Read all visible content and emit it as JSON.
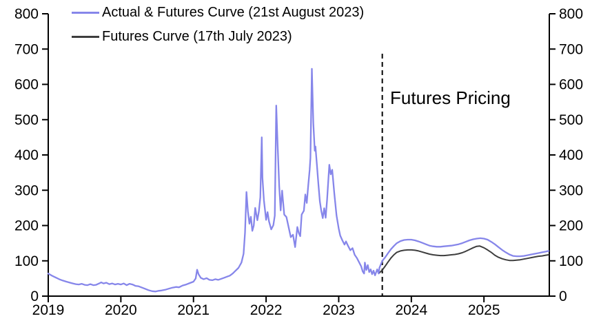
{
  "page": {
    "background": "#ffffff"
  },
  "legend": {
    "items": [
      {
        "label": "Actual & Futures Curve (21st August 2023)",
        "color": "#8686ea"
      },
      {
        "label": "Futures Curve (17th July 2023)",
        "color": "#3d3d3d"
      }
    ]
  },
  "annotation": {
    "text": "Futures Pricing"
  },
  "chart_data": {
    "type": "line",
    "title": "",
    "xlabel": "",
    "ylabel": "",
    "grid": false,
    "legend_position": "top-left",
    "x_axis": {
      "min": 2019,
      "max": 2025.9,
      "ticks": [
        2019,
        2020,
        2021,
        2022,
        2023,
        2024,
        2025
      ],
      "tick_labels": [
        "2019",
        "2020",
        "2021",
        "2022",
        "2023",
        "2024",
        "2025"
      ]
    },
    "y_axis": {
      "min": 0,
      "max": 800,
      "ticks": [
        0,
        100,
        200,
        300,
        400,
        500,
        600,
        700,
        800
      ],
      "label_sides": "both"
    },
    "forecast_divider": {
      "x": 2023.6,
      "style": "dashed",
      "color": "#000000",
      "label": "Futures Pricing"
    },
    "series": [
      {
        "name": "Actual & Futures Curve (21st August 2023)",
        "color": "#8686ea",
        "width": 2.3,
        "points": [
          [
            2019.0,
            64
          ],
          [
            2019.05,
            58
          ],
          [
            2019.1,
            53
          ],
          [
            2019.15,
            48
          ],
          [
            2019.2,
            44
          ],
          [
            2019.25,
            41
          ],
          [
            2019.3,
            38
          ],
          [
            2019.34,
            36
          ],
          [
            2019.38,
            34
          ],
          [
            2019.42,
            33
          ],
          [
            2019.46,
            35
          ],
          [
            2019.5,
            32
          ],
          [
            2019.54,
            31
          ],
          [
            2019.58,
            34
          ],
          [
            2019.62,
            31
          ],
          [
            2019.66,
            32
          ],
          [
            2019.7,
            36
          ],
          [
            2019.73,
            39
          ],
          [
            2019.76,
            36
          ],
          [
            2019.8,
            38
          ],
          [
            2019.84,
            34
          ],
          [
            2019.88,
            36
          ],
          [
            2019.92,
            33
          ],
          [
            2019.96,
            35
          ],
          [
            2020.0,
            33
          ],
          [
            2020.04,
            36
          ],
          [
            2020.08,
            31
          ],
          [
            2020.12,
            35
          ],
          [
            2020.16,
            33
          ],
          [
            2020.2,
            29
          ],
          [
            2020.24,
            28
          ],
          [
            2020.28,
            25
          ],
          [
            2020.33,
            21
          ],
          [
            2020.38,
            17
          ],
          [
            2020.43,
            14
          ],
          [
            2020.48,
            13
          ],
          [
            2020.52,
            15
          ],
          [
            2020.56,
            16
          ],
          [
            2020.61,
            18
          ],
          [
            2020.66,
            21
          ],
          [
            2020.71,
            24
          ],
          [
            2020.76,
            26
          ],
          [
            2020.8,
            25
          ],
          [
            2020.85,
            30
          ],
          [
            2020.9,
            33
          ],
          [
            2020.95,
            37
          ],
          [
            2021.0,
            41
          ],
          [
            2021.03,
            50
          ],
          [
            2021.05,
            75
          ],
          [
            2021.07,
            62
          ],
          [
            2021.1,
            52
          ],
          [
            2021.14,
            48
          ],
          [
            2021.18,
            51
          ],
          [
            2021.22,
            46
          ],
          [
            2021.26,
            45
          ],
          [
            2021.3,
            48
          ],
          [
            2021.34,
            46
          ],
          [
            2021.38,
            49
          ],
          [
            2021.42,
            52
          ],
          [
            2021.46,
            55
          ],
          [
            2021.5,
            58
          ],
          [
            2021.54,
            64
          ],
          [
            2021.58,
            72
          ],
          [
            2021.62,
            80
          ],
          [
            2021.66,
            95
          ],
          [
            2021.69,
            120
          ],
          [
            2021.71,
            180
          ],
          [
            2021.73,
            295
          ],
          [
            2021.75,
            240
          ],
          [
            2021.77,
            205
          ],
          [
            2021.79,
            225
          ],
          [
            2021.81,
            185
          ],
          [
            2021.83,
            200
          ],
          [
            2021.85,
            250
          ],
          [
            2021.88,
            215
          ],
          [
            2021.9,
            240
          ],
          [
            2021.92,
            280
          ],
          [
            2021.94,
            450
          ],
          [
            2021.95,
            335
          ],
          [
            2021.97,
            272
          ],
          [
            2022.0,
            216
          ],
          [
            2022.02,
            238
          ],
          [
            2022.04,
            212
          ],
          [
            2022.07,
            189
          ],
          [
            2022.1,
            201
          ],
          [
            2022.12,
            228
          ],
          [
            2022.14,
            540
          ],
          [
            2022.16,
            424
          ],
          [
            2022.18,
            312
          ],
          [
            2022.2,
            243
          ],
          [
            2022.22,
            299
          ],
          [
            2022.25,
            231
          ],
          [
            2022.28,
            224
          ],
          [
            2022.31,
            196
          ],
          [
            2022.34,
            167
          ],
          [
            2022.37,
            174
          ],
          [
            2022.4,
            139
          ],
          [
            2022.43,
            196
          ],
          [
            2022.45,
            179
          ],
          [
            2022.47,
            170
          ],
          [
            2022.49,
            231
          ],
          [
            2022.52,
            242
          ],
          [
            2022.54,
            288
          ],
          [
            2022.56,
            264
          ],
          [
            2022.58,
            313
          ],
          [
            2022.6,
            358
          ],
          [
            2022.61,
            392
          ],
          [
            2022.63,
            644
          ],
          [
            2022.65,
            490
          ],
          [
            2022.67,
            412
          ],
          [
            2022.68,
            424
          ],
          [
            2022.7,
            372
          ],
          [
            2022.72,
            319
          ],
          [
            2022.74,
            268
          ],
          [
            2022.76,
            241
          ],
          [
            2022.78,
            221
          ],
          [
            2022.8,
            249
          ],
          [
            2022.82,
            222
          ],
          [
            2022.84,
            274
          ],
          [
            2022.87,
            372
          ],
          [
            2022.89,
            345
          ],
          [
            2022.91,
            358
          ],
          [
            2022.94,
            290
          ],
          [
            2022.97,
            228
          ],
          [
            2023.0,
            192
          ],
          [
            2023.02,
            172
          ],
          [
            2023.05,
            158
          ],
          [
            2023.08,
            146
          ],
          [
            2023.1,
            155
          ],
          [
            2023.13,
            142
          ],
          [
            2023.16,
            130
          ],
          [
            2023.19,
            136
          ],
          [
            2023.22,
            117
          ],
          [
            2023.25,
            108
          ],
          [
            2023.28,
            96
          ],
          [
            2023.31,
            84
          ],
          [
            2023.33,
            70
          ],
          [
            2023.35,
            64
          ],
          [
            2023.36,
            95
          ],
          [
            2023.38,
            74
          ],
          [
            2023.4,
            88
          ],
          [
            2023.42,
            68
          ],
          [
            2023.44,
            76
          ],
          [
            2023.46,
            62
          ],
          [
            2023.48,
            72
          ],
          [
            2023.5,
            59
          ],
          [
            2023.52,
            70
          ],
          [
            2023.53,
            76
          ],
          [
            2023.55,
            64
          ],
          [
            2023.56,
            80
          ],
          [
            2023.58,
            90
          ],
          [
            2023.6,
            100
          ],
          [
            2023.64,
            110
          ],
          [
            2023.68,
            122
          ],
          [
            2023.72,
            133
          ],
          [
            2023.76,
            142
          ],
          [
            2023.8,
            150
          ],
          [
            2023.85,
            156
          ],
          [
            2023.9,
            159
          ],
          [
            2023.95,
            160
          ],
          [
            2024.0,
            160
          ],
          [
            2024.05,
            158
          ],
          [
            2024.1,
            155
          ],
          [
            2024.15,
            151
          ],
          [
            2024.2,
            147
          ],
          [
            2024.25,
            143
          ],
          [
            2024.3,
            141
          ],
          [
            2024.35,
            140
          ],
          [
            2024.4,
            140
          ],
          [
            2024.45,
            141
          ],
          [
            2024.5,
            142
          ],
          [
            2024.55,
            143
          ],
          [
            2024.6,
            145
          ],
          [
            2024.65,
            147
          ],
          [
            2024.7,
            150
          ],
          [
            2024.75,
            154
          ],
          [
            2024.8,
            158
          ],
          [
            2024.85,
            161
          ],
          [
            2024.9,
            163
          ],
          [
            2024.95,
            164
          ],
          [
            2025.0,
            163
          ],
          [
            2025.05,
            160
          ],
          [
            2025.1,
            154
          ],
          [
            2025.15,
            147
          ],
          [
            2025.2,
            139
          ],
          [
            2025.25,
            131
          ],
          [
            2025.3,
            124
          ],
          [
            2025.35,
            118
          ],
          [
            2025.4,
            114
          ],
          [
            2025.45,
            113
          ],
          [
            2025.5,
            113
          ],
          [
            2025.55,
            114
          ],
          [
            2025.6,
            116
          ],
          [
            2025.65,
            118
          ],
          [
            2025.7,
            120
          ],
          [
            2025.75,
            122
          ],
          [
            2025.8,
            124
          ],
          [
            2025.85,
            126
          ],
          [
            2025.89,
            128
          ]
        ]
      },
      {
        "name": "Futures Curve (17th July 2023)",
        "color": "#3d3d3d",
        "width": 2,
        "points": [
          [
            2023.56,
            66
          ],
          [
            2023.6,
            74
          ],
          [
            2023.64,
            85
          ],
          [
            2023.68,
            97
          ],
          [
            2023.72,
            108
          ],
          [
            2023.76,
            117
          ],
          [
            2023.8,
            124
          ],
          [
            2023.85,
            128
          ],
          [
            2023.9,
            130
          ],
          [
            2023.95,
            131
          ],
          [
            2024.0,
            131
          ],
          [
            2024.05,
            130
          ],
          [
            2024.1,
            128
          ],
          [
            2024.15,
            125
          ],
          [
            2024.2,
            122
          ],
          [
            2024.25,
            119
          ],
          [
            2024.3,
            117
          ],
          [
            2024.35,
            116
          ],
          [
            2024.4,
            115
          ],
          [
            2024.45,
            115
          ],
          [
            2024.5,
            116
          ],
          [
            2024.55,
            117
          ],
          [
            2024.6,
            118
          ],
          [
            2024.65,
            120
          ],
          [
            2024.7,
            123
          ],
          [
            2024.75,
            127
          ],
          [
            2024.8,
            132
          ],
          [
            2024.85,
            137
          ],
          [
            2024.9,
            141
          ],
          [
            2024.94,
            142
          ],
          [
            2025.0,
            137
          ],
          [
            2025.05,
            131
          ],
          [
            2025.1,
            124
          ],
          [
            2025.15,
            116
          ],
          [
            2025.2,
            110
          ],
          [
            2025.25,
            106
          ],
          [
            2025.3,
            103
          ],
          [
            2025.35,
            101
          ],
          [
            2025.4,
            101
          ],
          [
            2025.45,
            102
          ],
          [
            2025.5,
            103
          ],
          [
            2025.55,
            105
          ],
          [
            2025.6,
            107
          ],
          [
            2025.65,
            109
          ],
          [
            2025.7,
            111
          ],
          [
            2025.75,
            113
          ],
          [
            2025.8,
            114
          ],
          [
            2025.85,
            116
          ],
          [
            2025.89,
            117
          ]
        ]
      }
    ]
  }
}
